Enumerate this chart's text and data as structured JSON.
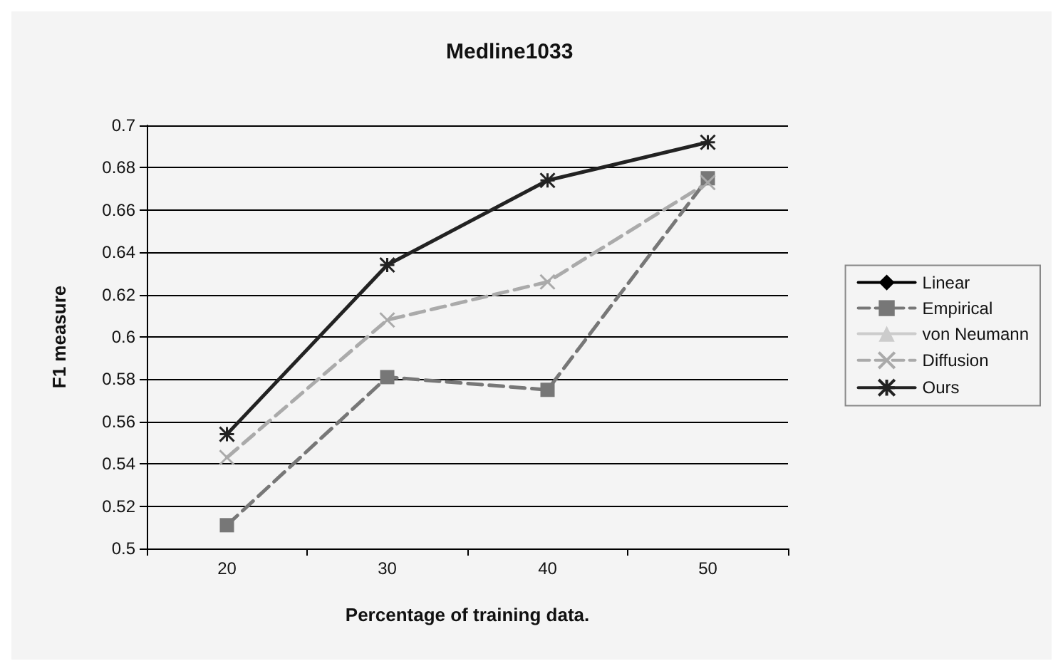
{
  "chart_data": {
    "type": "line",
    "title": "Medline1033",
    "xlabel": "Percentage of training data.",
    "ylabel": "F1 measure",
    "categories": [
      "20",
      "30",
      "40",
      "50"
    ],
    "ylim": [
      0.5,
      0.7
    ],
    "yticks": [
      0.5,
      0.52,
      0.54,
      0.56,
      0.58,
      0.6,
      0.62,
      0.64,
      0.66,
      0.68,
      0.7
    ],
    "grid": "y",
    "legend": "right",
    "series": [
      {
        "name": "Linear",
        "color": "#000000",
        "marker": "diamond",
        "line_style": "solid",
        "values": [
          null,
          null,
          null,
          null
        ]
      },
      {
        "name": "Empirical",
        "color": "#777777",
        "marker": "square",
        "line_style": "dashed",
        "values": [
          0.511,
          0.581,
          0.575,
          0.675
        ]
      },
      {
        "name": "von Neumann",
        "color": "#cccccc",
        "marker": "triangle",
        "line_style": "solid",
        "values": [
          null,
          null,
          null,
          null
        ]
      },
      {
        "name": "Diffusion",
        "color": "#aaaaaa",
        "marker": "cross",
        "line_style": "dashed",
        "values": [
          0.543,
          0.608,
          0.626,
          0.673
        ]
      },
      {
        "name": "Ours",
        "color": "#222222",
        "marker": "cross",
        "line_style": "solid",
        "values": [
          0.554,
          0.634,
          0.674,
          0.692
        ]
      }
    ]
  }
}
